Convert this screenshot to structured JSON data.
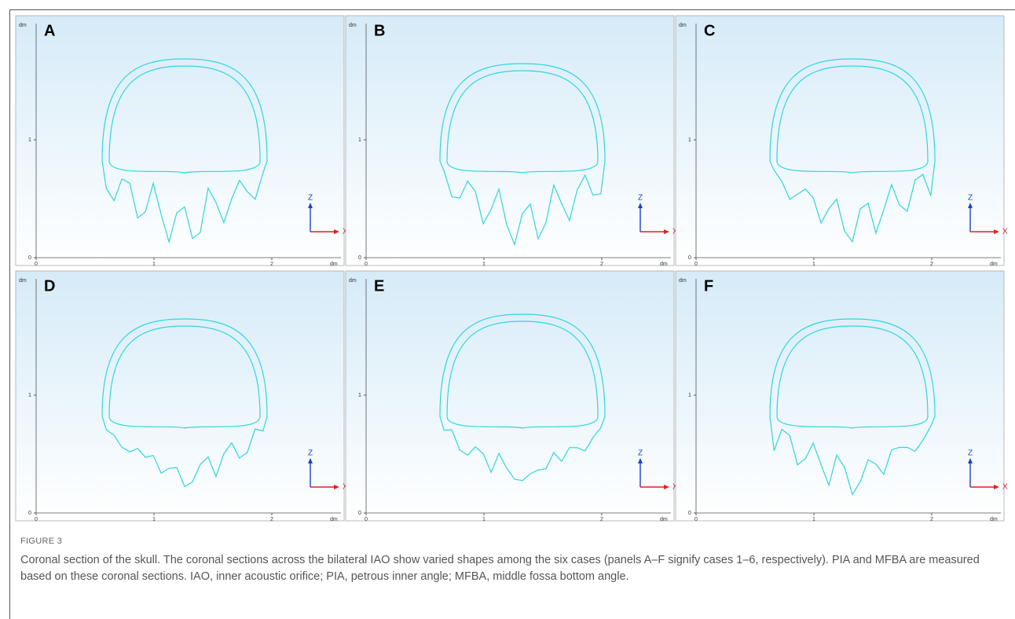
{
  "figure": {
    "panels": [
      {
        "label": "A",
        "unit": "dm",
        "xticks": [
          0,
          1,
          2
        ],
        "yticks": [
          0,
          1
        ],
        "axis_z": "Z",
        "axis_x": "X"
      },
      {
        "label": "B",
        "unit": "dm",
        "xticks": [
          0,
          1,
          2
        ],
        "yticks": [
          0,
          1
        ],
        "axis_z": "Z",
        "axis_x": "X"
      },
      {
        "label": "C",
        "unit": "dm",
        "xticks": [
          0,
          1,
          2
        ],
        "yticks": [
          0,
          1
        ],
        "axis_z": "Z",
        "axis_x": "X"
      },
      {
        "label": "D",
        "unit": "dm",
        "xticks": [
          0,
          1,
          2
        ],
        "yticks": [
          0,
          1
        ],
        "axis_z": "Z",
        "axis_x": "X"
      },
      {
        "label": "E",
        "unit": "dm",
        "xticks": [
          0,
          1,
          2
        ],
        "yticks": [
          0,
          1
        ],
        "axis_z": "Z",
        "axis_x": "X"
      },
      {
        "label": "F",
        "unit": "dm",
        "xticks": [
          0,
          1,
          2
        ],
        "yticks": [
          0,
          1
        ],
        "axis_z": "Z",
        "axis_x": "X"
      }
    ]
  },
  "caption": {
    "label": "FIGURE 3",
    "text": "Coronal section of the skull. The coronal sections across the bilateral IAO show varied shapes among the six cases (panels A–F signify cases 1–6, respectively). PIA and MFBA are measured based on these coronal sections. IAO, inner acoustic orifice; PIA, petrous inner angle; MFBA, middle fossa bottom angle."
  }
}
